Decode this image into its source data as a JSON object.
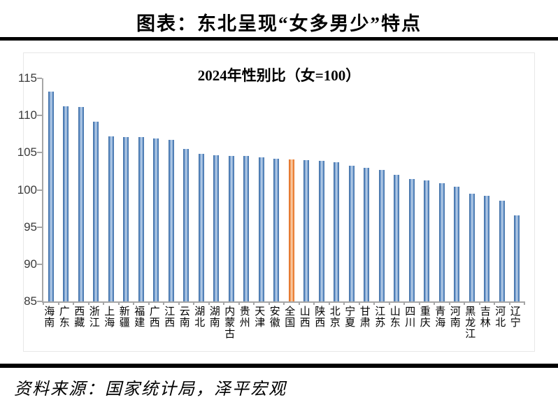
{
  "page": {
    "title": "图表：东北呈现“女多男少”特点",
    "source": "资料来源：国家统计局，泽平宏观"
  },
  "chart_data": {
    "type": "bar",
    "title": "2024年性别比（女=100）",
    "categories": [
      "海南",
      "广东",
      "西藏",
      "浙江",
      "上海",
      "新疆",
      "福建",
      "广西",
      "江西",
      "云南",
      "湖北",
      "湖南",
      "内蒙古",
      "贵州",
      "天津",
      "安徽",
      "全国",
      "山西",
      "陕西",
      "北京",
      "宁夏",
      "甘肃",
      "江苏",
      "山东",
      "四川",
      "重庆",
      "青海",
      "河南",
      "黑龙江",
      "吉林",
      "河北",
      "辽宁"
    ],
    "values": [
      113.2,
      111.2,
      111.1,
      109.2,
      107.2,
      107.1,
      107.1,
      106.9,
      106.7,
      105.5,
      104.8,
      104.7,
      104.6,
      104.6,
      104.4,
      104.2,
      104.1,
      104.0,
      103.9,
      103.7,
      103.2,
      103.0,
      102.7,
      102.0,
      101.5,
      101.3,
      100.9,
      100.4,
      99.5,
      99.2,
      98.5,
      96.6
    ],
    "highlight_category": "全国",
    "highlight_index": 16,
    "ylim": [
      85,
      115
    ],
    "yticks": [
      85,
      90,
      95,
      100,
      105,
      110,
      115
    ],
    "grid": false,
    "legend": "none",
    "colors": {
      "bar": "#4f81bd",
      "bar_center": "#b4cbe6",
      "highlight": "#ed7d31",
      "highlight_center": "#f8cba6",
      "axis": "#a6a6a6"
    }
  }
}
